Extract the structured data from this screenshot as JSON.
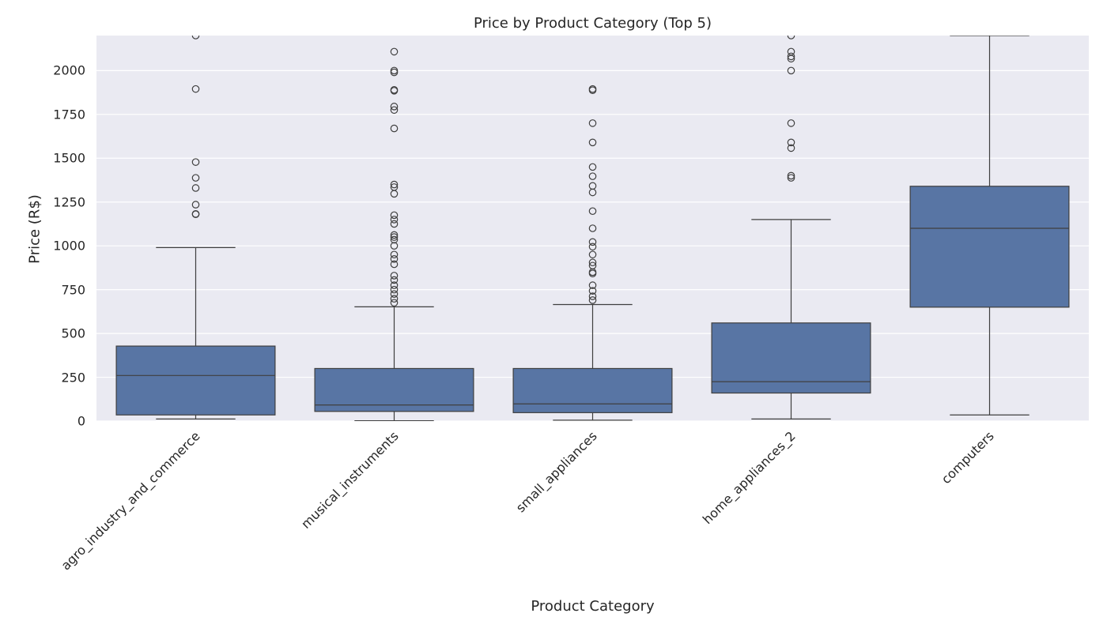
{
  "chart_data": {
    "type": "box",
    "title": "Price by Product Category (Top 5)",
    "xlabel": "Product Category",
    "ylabel": "Price (R$)",
    "ylim": [
      0,
      2200
    ],
    "yticks": [
      0,
      250,
      500,
      750,
      1000,
      1250,
      1500,
      1750,
      2000
    ],
    "grid": true,
    "legend": null,
    "box_color": "#5875a4",
    "edge_color": "#3f3f3f",
    "background_color": "#eaeaf2",
    "categories": [
      "agro_industry_and_commerce",
      "musical_instruments",
      "small_appliances",
      "home_appliances_2",
      "computers"
    ],
    "series": [
      {
        "name": "agro_industry_and_commerce",
        "whisker_low": 12,
        "q1": 35,
        "median": 260,
        "q3": 428,
        "whisker_high": 990,
        "outliers": [
          1180,
          1182,
          1235,
          1330,
          1388,
          1478,
          1895,
          2200
        ]
      },
      {
        "name": "musical_instruments",
        "whisker_low": 2,
        "q1": 55,
        "median": 92,
        "q3": 300,
        "whisker_high": 652,
        "outliers": [
          675,
          698,
          725,
          750,
          775,
          805,
          830,
          895,
          925,
          950,
          1000,
          1035,
          1050,
          1062,
          1125,
          1150,
          1175,
          1297,
          1335,
          1350,
          1670,
          1775,
          1795,
          1885,
          1890,
          1990,
          2000,
          2108
        ]
      },
      {
        "name": "small_appliances",
        "whisker_low": 5,
        "q1": 48,
        "median": 98,
        "q3": 300,
        "whisker_high": 665,
        "outliers": [
          690,
          712,
          743,
          775,
          842,
          850,
          887,
          905,
          950,
          995,
          1022,
          1100,
          1198,
          1305,
          1342,
          1397,
          1450,
          1590,
          1700,
          1888,
          1895
        ]
      },
      {
        "name": "home_appliances_2",
        "whisker_low": 12,
        "q1": 160,
        "median": 225,
        "q3": 560,
        "whisker_high": 1150,
        "outliers": [
          1388,
          1400,
          1558,
          1590,
          1700,
          2000,
          2068,
          2081,
          2108,
          2200
        ]
      },
      {
        "name": "computers",
        "whisker_low": 35,
        "q1": 650,
        "median": 1100,
        "q3": 1340,
        "whisker_high": 2200,
        "outliers": []
      }
    ]
  }
}
